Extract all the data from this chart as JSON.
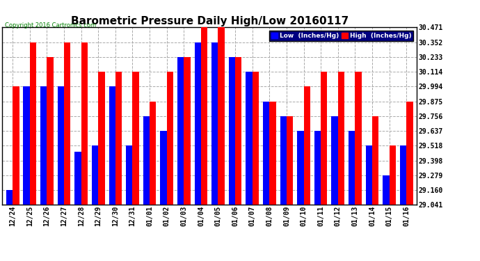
{
  "title": "Barometric Pressure Daily High/Low 20160117",
  "copyright": "Copyright 2016 Cartronics.com",
  "dates": [
    "12/24",
    "12/25",
    "12/26",
    "12/27",
    "12/28",
    "12/29",
    "12/30",
    "12/31",
    "01/01",
    "01/02",
    "01/03",
    "01/04",
    "01/05",
    "01/06",
    "01/07",
    "01/08",
    "01/09",
    "01/10",
    "01/11",
    "01/12",
    "01/13",
    "01/14",
    "01/15",
    "01/16"
  ],
  "low": [
    29.16,
    29.994,
    29.994,
    29.994,
    29.47,
    29.518,
    29.994,
    29.518,
    29.756,
    29.637,
    30.233,
    30.352,
    30.352,
    30.233,
    30.114,
    29.875,
    29.756,
    29.637,
    29.637,
    29.756,
    29.637,
    29.518,
    29.279,
    29.518
  ],
  "high": [
    29.994,
    30.352,
    30.233,
    30.352,
    30.352,
    30.114,
    30.114,
    30.114,
    29.875,
    30.114,
    30.233,
    30.471,
    30.471,
    30.233,
    30.114,
    29.875,
    29.756,
    29.994,
    30.114,
    30.114,
    30.114,
    29.756,
    29.518,
    29.875
  ],
  "ymin": 29.041,
  "ymax": 30.471,
  "yticks": [
    29.041,
    29.16,
    29.279,
    29.398,
    29.518,
    29.637,
    29.756,
    29.875,
    29.994,
    30.114,
    30.233,
    30.352,
    30.471
  ],
  "bar_width": 0.38,
  "low_color": "#0000FF",
  "high_color": "#FF0000",
  "bg_color": "#FFFFFF",
  "grid_color": "#AAAAAA",
  "title_fontsize": 11,
  "tick_fontsize": 7,
  "legend_low": "Low  (Inches/Hg)",
  "legend_high": "High  (Inches/Hg)",
  "legend_bg": "#000080"
}
